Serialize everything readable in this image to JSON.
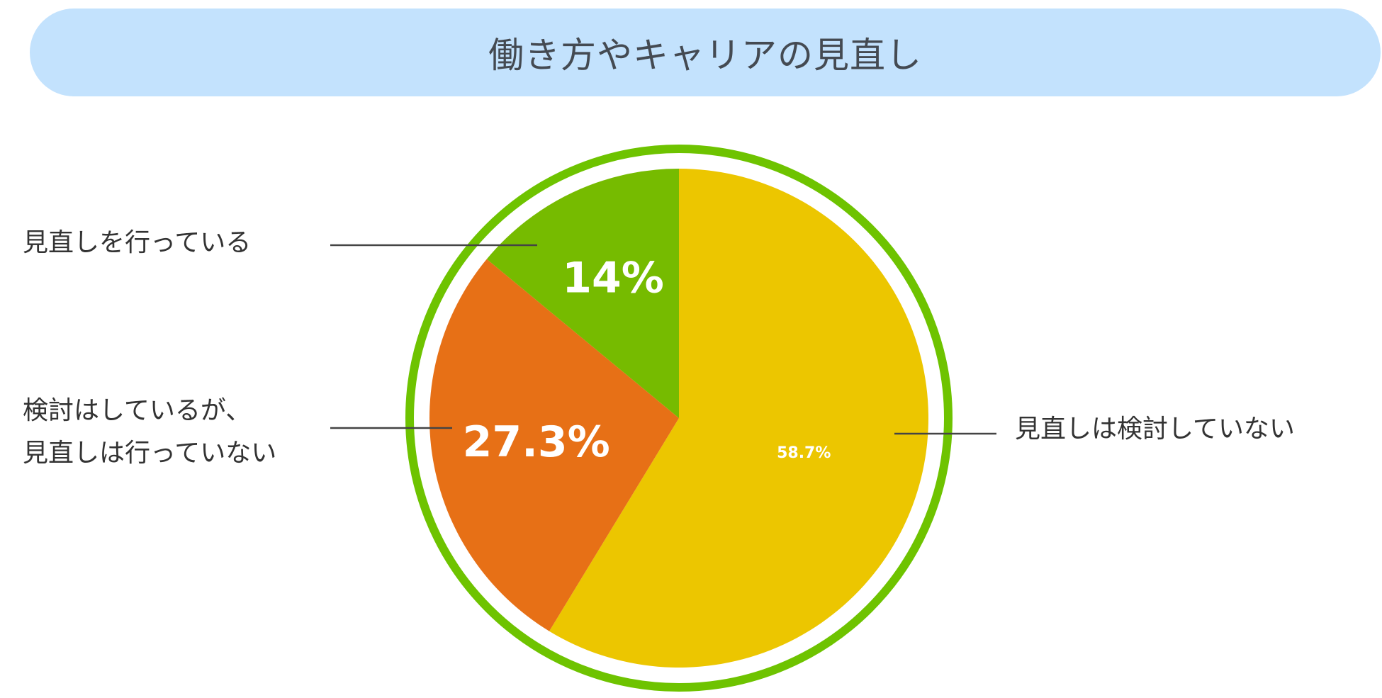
{
  "chart_data": {
    "type": "pie",
    "title": "働き方やキャリアの見直し",
    "start_angle_deg": 0,
    "direction": "clockwise",
    "slices": [
      {
        "label": "見直しは検討していない",
        "value": 58.7,
        "value_label": "58.7%",
        "color": "#ecc600"
      },
      {
        "label": "検討はしているが、\n見直しは行っていない",
        "value": 27.3,
        "value_label": "27.3%",
        "color": "#e77016"
      },
      {
        "label": "見直しを行っている",
        "value": 14,
        "value_label": "14%",
        "color": "#76bb00"
      }
    ],
    "highlight_ring": {
      "color": "#6ec300",
      "covers": "全体"
    }
  }
}
